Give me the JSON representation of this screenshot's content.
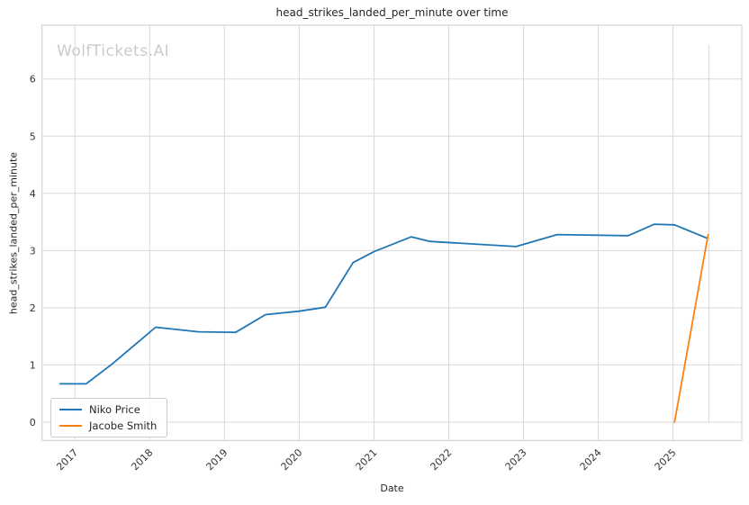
{
  "watermark": "WolfTickets.AI",
  "chart_data": {
    "type": "line",
    "title": "head_strikes_landed_per_minute over time",
    "xlabel": "Date",
    "ylabel": "head_strikes_landed_per_minute",
    "xlim": [
      2016.56,
      2025.92
    ],
    "ylim": [
      -0.32,
      6.94
    ],
    "xticks": [
      2017,
      2018,
      2019,
      2020,
      2021,
      2022,
      2023,
      2024,
      2025
    ],
    "yticks": [
      0,
      1,
      2,
      3,
      4,
      5,
      6
    ],
    "grid": true,
    "grid_color": "#d9d9d9",
    "spine_color": "#cccccc",
    "legend_position": "lower-left",
    "series": [
      {
        "name": "Niko Price",
        "color": "#1f77b4",
        "points": [
          [
            2016.8,
            0.67
          ],
          [
            2017.15,
            0.67
          ],
          [
            2017.5,
            1.02
          ],
          [
            2018.08,
            1.66
          ],
          [
            2018.65,
            1.58
          ],
          [
            2019.15,
            1.57
          ],
          [
            2019.55,
            1.88
          ],
          [
            2020.0,
            1.94
          ],
          [
            2020.35,
            2.01
          ],
          [
            2020.72,
            2.79
          ],
          [
            2021.0,
            2.98
          ],
          [
            2021.5,
            3.24
          ],
          [
            2021.75,
            3.16
          ],
          [
            2022.9,
            3.07
          ],
          [
            2023.45,
            3.28
          ],
          [
            2024.4,
            3.26
          ],
          [
            2024.75,
            3.46
          ],
          [
            2025.02,
            3.45
          ],
          [
            2025.45,
            3.22
          ]
        ]
      },
      {
        "name": "Jacobe Smith",
        "color": "#ff7f0e",
        "points": [
          [
            2025.02,
            0.0
          ],
          [
            2025.47,
            3.28
          ]
        ]
      }
    ],
    "annotations": [
      {
        "type": "vline",
        "x": 2025.48,
        "y0": 0.0,
        "y1": 6.6,
        "color": "#ff7f0e",
        "opacity": 0.3
      }
    ]
  }
}
